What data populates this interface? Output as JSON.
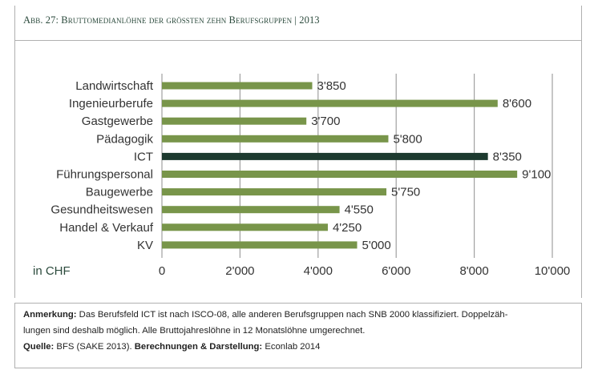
{
  "header": {
    "title": "Abb. 27:  Bruttomedianlöhne der grössten zehn Berufsgruppen | 2013"
  },
  "colors": {
    "bar": "#78954a",
    "bar_highlight": "#1d3a2f",
    "title_text": "#2b4a3c",
    "grid": "#a0a0a0"
  },
  "chart_data": {
    "type": "bar",
    "orientation": "horizontal",
    "categories": [
      "Landwirtschaft",
      "Ingenieurberufe",
      "Gastgewerbe",
      "Pädagogik",
      "ICT",
      "Führungspersonal",
      "Baugewerbe",
      "Gesundheitswesen",
      "Handel & Verkauf",
      "KV"
    ],
    "values": [
      3850,
      8600,
      3700,
      5800,
      8350,
      9100,
      5750,
      4550,
      4250,
      5000
    ],
    "data_labels": [
      "3'850",
      "8'600",
      "3'700",
      "5'800",
      "8'350",
      "9'100",
      "5'750",
      "4'550",
      "4'250",
      "5'000"
    ],
    "highlight_category": "ICT",
    "xlim": [
      0,
      10000
    ],
    "xticks": [
      0,
      2000,
      4000,
      6000,
      8000,
      10000
    ],
    "xtick_labels": [
      "0",
      "2'000",
      "4'000",
      "6'000",
      "8'000",
      "10'000"
    ],
    "unit_label": "in CHF",
    "grid": true
  },
  "notes": {
    "anmerkung_label": "Anmerkung:",
    "anmerkung_text": " Das Berufsfeld ICT ist nach ISCO-08, alle anderen Berufsgruppen nach SNB 2000 klassifiziert. Doppelzäh-",
    "anmerkung_text2": "lungen sind deshalb möglich. Alle Bruttojahreslöhne in 12 Monatslöhne umgerechnet.",
    "quelle_label": "Quelle:",
    "quelle_text": " BFS (SAKE 2013). ",
    "berechnungen_label": "Berechnungen & Darstellung:",
    "berechnungen_text": " Econlab 2014"
  }
}
